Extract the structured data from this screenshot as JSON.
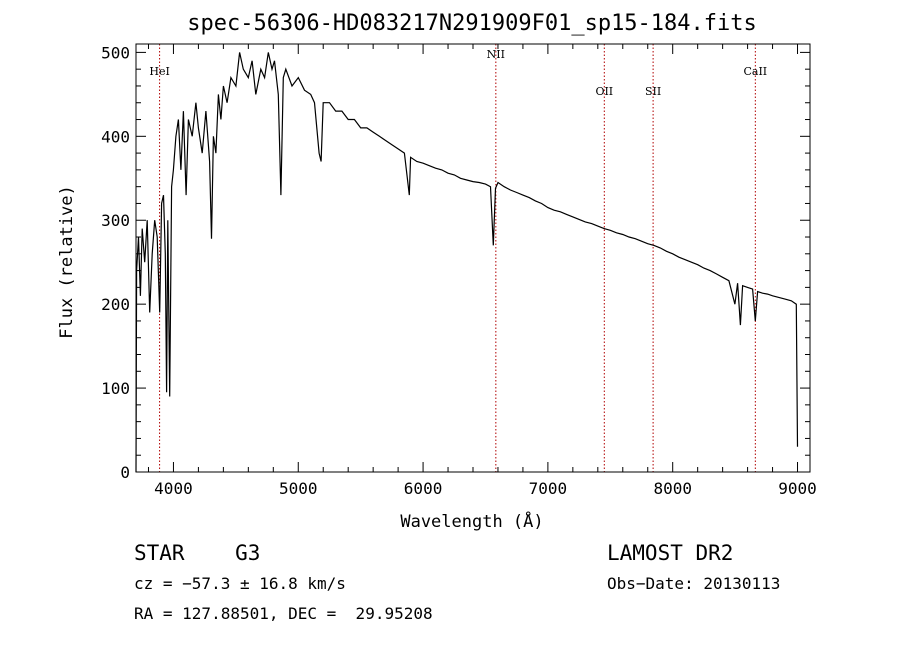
{
  "chart_data": {
    "type": "line",
    "title": "spec-56306-HD083217N291909F01_sp15-184.fits",
    "xlabel": "Wavelength (Å)",
    "ylabel": "Flux (relative)",
    "xlim": [
      3700,
      9100
    ],
    "ylim": [
      0,
      510
    ],
    "xticks": [
      "4000",
      "5000",
      "6000",
      "7000",
      "8000",
      "9000"
    ],
    "yticks": [
      "0",
      "100",
      "200",
      "300",
      "400",
      "500"
    ],
    "grid": false,
    "series": [
      {
        "points": [
          [
            3700,
            0
          ],
          [
            3705,
            240
          ],
          [
            3720,
            280
          ],
          [
            3735,
            210
          ],
          [
            3750,
            290
          ],
          [
            3770,
            250
          ],
          [
            3790,
            300
          ],
          [
            3810,
            190
          ],
          [
            3830,
            260
          ],
          [
            3850,
            300
          ],
          [
            3870,
            280
          ],
          [
            3890,
            190
          ],
          [
            3905,
            320
          ],
          [
            3920,
            330
          ],
          [
            3935,
            260
          ],
          [
            3945,
            95
          ],
          [
            3955,
            300
          ],
          [
            3970,
            90
          ],
          [
            3985,
            340
          ],
          [
            4000,
            360
          ],
          [
            4020,
            400
          ],
          [
            4040,
            420
          ],
          [
            4060,
            360
          ],
          [
            4080,
            430
          ],
          [
            4101,
            330
          ],
          [
            4120,
            420
          ],
          [
            4150,
            400
          ],
          [
            4180,
            440
          ],
          [
            4200,
            410
          ],
          [
            4230,
            380
          ],
          [
            4260,
            430
          ],
          [
            4290,
            370
          ],
          [
            4305,
            278
          ],
          [
            4320,
            400
          ],
          [
            4340,
            380
          ],
          [
            4360,
            450
          ],
          [
            4380,
            420
          ],
          [
            4400,
            460
          ],
          [
            4430,
            440
          ],
          [
            4460,
            470
          ],
          [
            4500,
            460
          ],
          [
            4530,
            500
          ],
          [
            4560,
            480
          ],
          [
            4600,
            470
          ],
          [
            4630,
            490
          ],
          [
            4660,
            450
          ],
          [
            4700,
            480
          ],
          [
            4730,
            470
          ],
          [
            4760,
            500
          ],
          [
            4790,
            480
          ],
          [
            4810,
            490
          ],
          [
            4840,
            450
          ],
          [
            4861,
            330
          ],
          [
            4880,
            470
          ],
          [
            4900,
            480
          ],
          [
            4950,
            460
          ],
          [
            5000,
            470
          ],
          [
            5050,
            455
          ],
          [
            5100,
            450
          ],
          [
            5130,
            440
          ],
          [
            5167,
            380
          ],
          [
            5183,
            370
          ],
          [
            5200,
            440
          ],
          [
            5250,
            440
          ],
          [
            5300,
            430
          ],
          [
            5350,
            430
          ],
          [
            5400,
            420
          ],
          [
            5450,
            420
          ],
          [
            5500,
            410
          ],
          [
            5550,
            410
          ],
          [
            5600,
            405
          ],
          [
            5650,
            400
          ],
          [
            5700,
            395
          ],
          [
            5750,
            390
          ],
          [
            5800,
            385
          ],
          [
            5850,
            380
          ],
          [
            5890,
            330
          ],
          [
            5900,
            375
          ],
          [
            5950,
            370
          ],
          [
            6000,
            368
          ],
          [
            6050,
            365
          ],
          [
            6100,
            362
          ],
          [
            6150,
            360
          ],
          [
            6200,
            356
          ],
          [
            6250,
            354
          ],
          [
            6300,
            350
          ],
          [
            6350,
            348
          ],
          [
            6400,
            346
          ],
          [
            6450,
            345
          ],
          [
            6500,
            343
          ],
          [
            6540,
            340
          ],
          [
            6563,
            270
          ],
          [
            6580,
            338
          ],
          [
            6600,
            345
          ],
          [
            6650,
            340
          ],
          [
            6700,
            336
          ],
          [
            6750,
            333
          ],
          [
            6800,
            330
          ],
          [
            6850,
            327
          ],
          [
            6900,
            323
          ],
          [
            6950,
            320
          ],
          [
            7000,
            315
          ],
          [
            7050,
            312
          ],
          [
            7100,
            310
          ],
          [
            7150,
            307
          ],
          [
            7200,
            304
          ],
          [
            7250,
            301
          ],
          [
            7300,
            298
          ],
          [
            7350,
            296
          ],
          [
            7400,
            293
          ],
          [
            7450,
            290
          ],
          [
            7500,
            288
          ],
          [
            7550,
            285
          ],
          [
            7600,
            283
          ],
          [
            7650,
            280
          ],
          [
            7700,
            278
          ],
          [
            7750,
            275
          ],
          [
            7800,
            272
          ],
          [
            7850,
            270
          ],
          [
            7900,
            267
          ],
          [
            7950,
            263
          ],
          [
            8000,
            260
          ],
          [
            8050,
            256
          ],
          [
            8100,
            253
          ],
          [
            8150,
            250
          ],
          [
            8200,
            247
          ],
          [
            8250,
            243
          ],
          [
            8300,
            240
          ],
          [
            8350,
            236
          ],
          [
            8400,
            232
          ],
          [
            8450,
            228
          ],
          [
            8498,
            200
          ],
          [
            8520,
            225
          ],
          [
            8542,
            175
          ],
          [
            8560,
            222
          ],
          [
            8600,
            220
          ],
          [
            8640,
            218
          ],
          [
            8662,
            180
          ],
          [
            8680,
            215
          ],
          [
            8720,
            213
          ],
          [
            8760,
            212
          ],
          [
            8800,
            210
          ],
          [
            8850,
            208
          ],
          [
            8900,
            206
          ],
          [
            8950,
            204
          ],
          [
            8990,
            200
          ],
          [
            9000,
            30
          ]
        ]
      }
    ],
    "lines": [
      {
        "label": "HeI",
        "x": 3889
      },
      {
        "label": "NII",
        "x": 6583
      },
      {
        "label": "OII",
        "x": 7452
      },
      {
        "label": "SII",
        "x": 7843
      },
      {
        "label": "CaII",
        "x": 8662
      }
    ],
    "line_color": "#b00000"
  },
  "info": {
    "object": "STAR    G3",
    "survey": "LAMOST DR2",
    "cz": "cz = −57.3 ± 16.8 km/s",
    "obsdate": "Obs−Date: 20130113",
    "radec": "RA = 127.88501, DEC =  29.95208"
  }
}
